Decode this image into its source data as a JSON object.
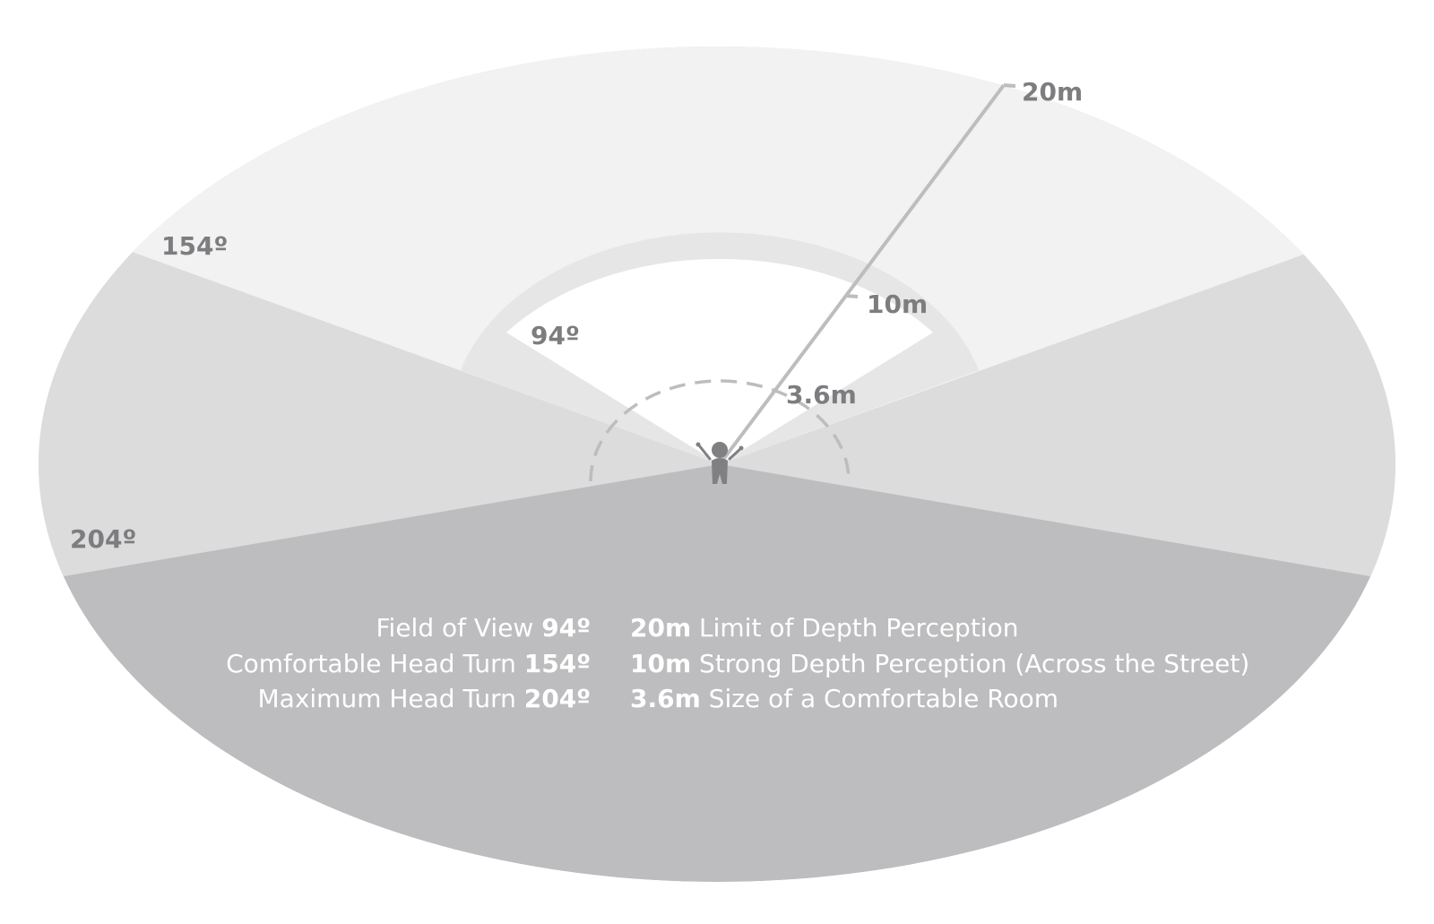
{
  "colors": {
    "background": "#ffffff",
    "outer_far": "#f2f2f2",
    "head_turn_zone": "#dcdcdd",
    "rear_zone": "#bdbdbf",
    "fov_band": "#e6e6e7",
    "fov_near": "#ffffff",
    "line": "#bdbdbf",
    "label": "#7d7d80",
    "figure": "#808083",
    "legend_text": "#ffffff"
  },
  "angle_labels": {
    "fov": "94º",
    "comfortable": "154º",
    "maximum": "204º"
  },
  "distance_labels": {
    "far": "20m",
    "mid": "10m",
    "near": "3.6m"
  },
  "legend": {
    "angles": [
      {
        "text": "Field of View ",
        "value": "94º"
      },
      {
        "text": "Comfortable Head Turn ",
        "value": "154º"
      },
      {
        "text": "Maximum Head Turn ",
        "value": "204º"
      }
    ],
    "distances": [
      {
        "value": "20m",
        "text": " Limit of Depth Perception"
      },
      {
        "value": "10m",
        "text": " Strong Depth Perception (Across the Street)"
      },
      {
        "value": "3.6m",
        "text": " Size of a Comfortable Room"
      }
    ]
  }
}
